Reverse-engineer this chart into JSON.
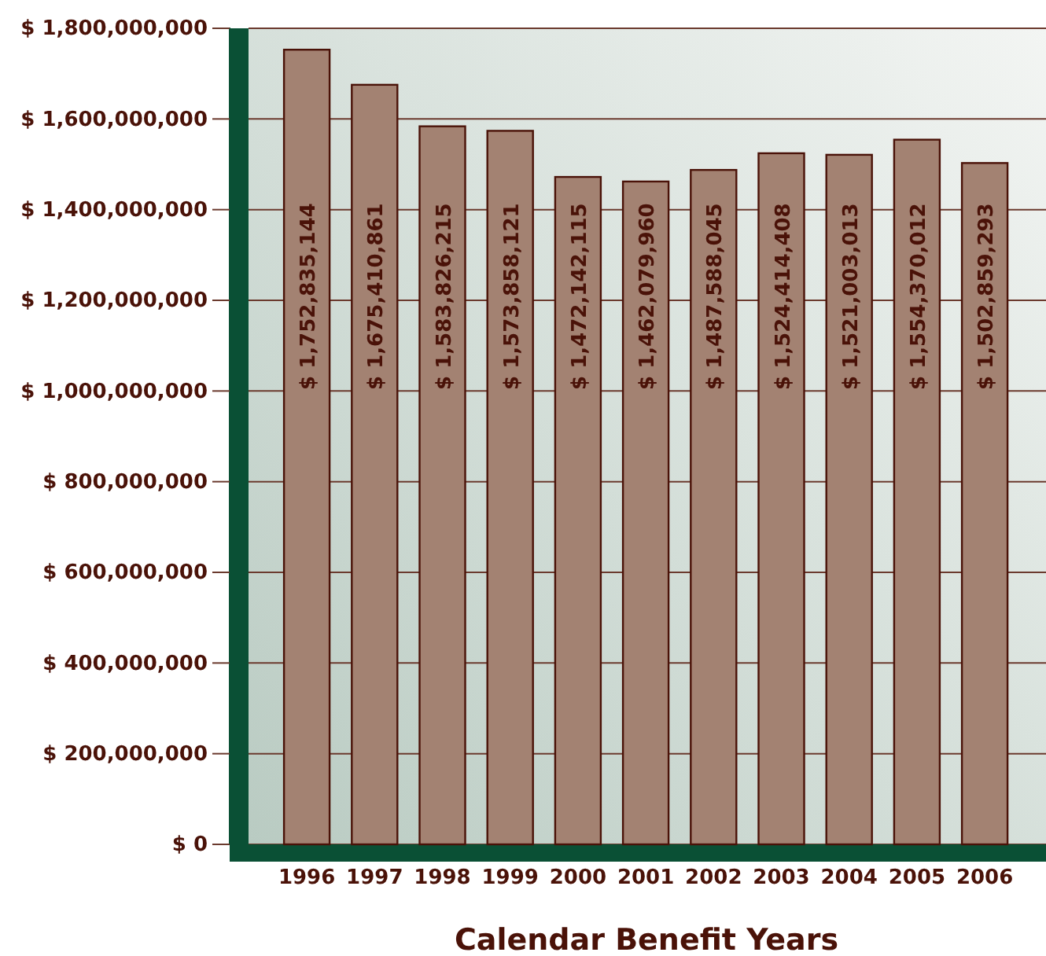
{
  "chart_data": {
    "type": "bar",
    "xlabel": "Calendar Benefit Years",
    "categories": [
      "1996",
      "1997",
      "1998",
      "1999",
      "2000",
      "2001",
      "2002",
      "2003",
      "2004",
      "2005",
      "2006"
    ],
    "values": [
      1752835144,
      1675410861,
      1583826215,
      1573858121,
      1472142115,
      1462079960,
      1487588045,
      1524414408,
      1521003013,
      1554370012,
      1502859293
    ],
    "value_labels": [
      "$ 1,752,835,144",
      "$ 1,675,410,861",
      "$ 1,583,826,215",
      "$ 1,573,858,121",
      "$ 1,472,142,115",
      "$ 1,462,079,960",
      "$ 1,487,588,045",
      "$ 1,524,414,408",
      "$ 1,521,003,013",
      "$ 1,554,370,012",
      "$ 1,502,859,293"
    ],
    "color": "#a38272",
    "ylim": [
      0,
      1800000000
    ],
    "yticks": [
      {
        "value": 0,
        "label": "$ 0"
      },
      {
        "value": 200000000,
        "label": "$ 200,000,000"
      },
      {
        "value": 400000000,
        "label": "$ 400,000,000"
      },
      {
        "value": 600000000,
        "label": "$ 600,000,000"
      },
      {
        "value": 800000000,
        "label": "$ 800,000,000"
      },
      {
        "value": 1000000000,
        "label": "$ 1,000,000,000"
      },
      {
        "value": 1200000000,
        "label": "$ 1,200,000,000"
      },
      {
        "value": 1400000000,
        "label": "$ 1,400,000,000"
      },
      {
        "value": 1600000000,
        "label": "$ 1,600,000,000"
      },
      {
        "value": 1800000000,
        "label": "$ 1,800,000,000"
      }
    ],
    "grid": "y"
  }
}
